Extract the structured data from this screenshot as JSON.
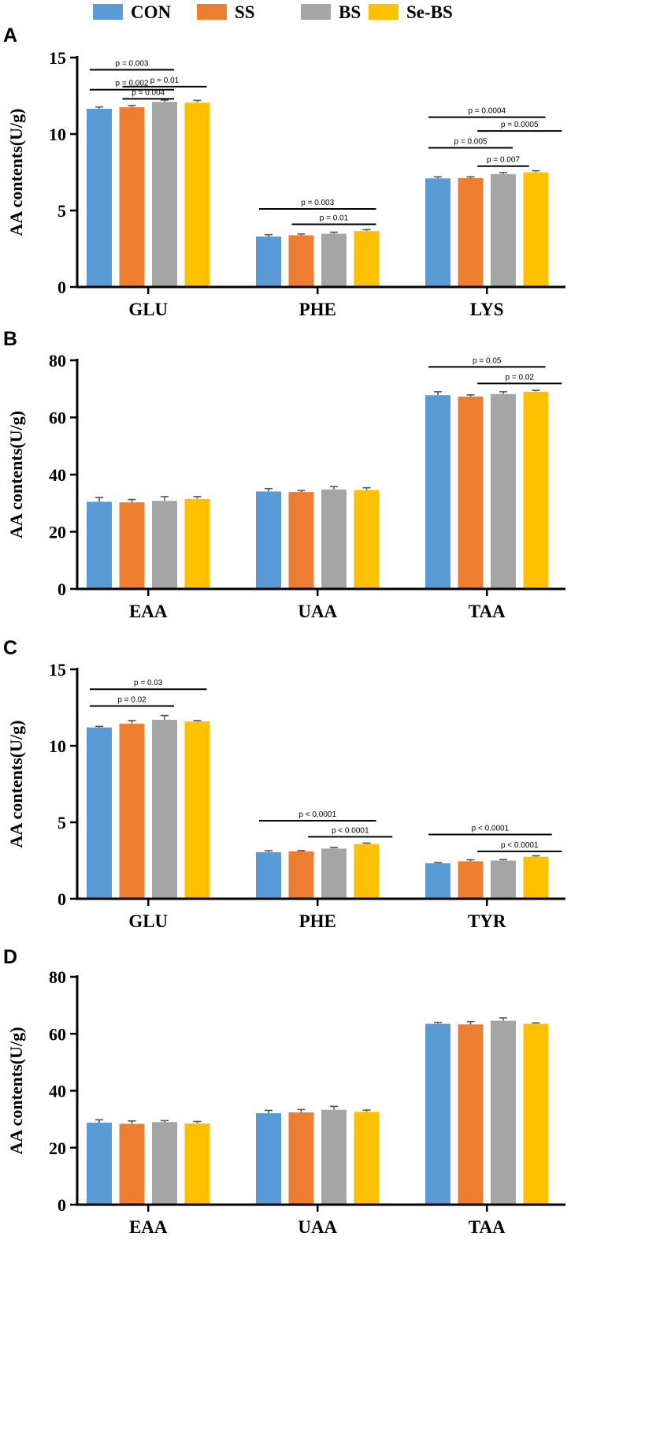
{
  "legend": {
    "items": [
      {
        "label": "CON",
        "color": "#5B9BD5"
      },
      {
        "label": "SS",
        "color": "#ED7D31"
      },
      {
        "label": "BS",
        "color": "#A5A5A5"
      },
      {
        "label": "Se-BS",
        "color": "#FFC000"
      }
    ]
  },
  "chart_data": [
    {
      "panel": "A",
      "type": "bar",
      "ylabel": "AA contents(U/g)",
      "ylim": [
        0,
        15
      ],
      "yticks": [
        0,
        5,
        10,
        15
      ],
      "categories": [
        "GLU",
        "PHE",
        "LYS"
      ],
      "series": [
        {
          "name": "CON",
          "values": [
            11.65,
            3.3,
            7.1
          ],
          "errors": [
            0.12,
            0.12,
            0.1
          ]
        },
        {
          "name": "SS",
          "values": [
            11.75,
            3.38,
            7.12
          ],
          "errors": [
            0.12,
            0.08,
            0.08
          ]
        },
        {
          "name": "BS",
          "values": [
            12.1,
            3.48,
            7.38
          ],
          "errors": [
            0.12,
            0.1,
            0.1
          ]
        },
        {
          "name": "Se-BS",
          "values": [
            12.05,
            3.65,
            7.5
          ],
          "errors": [
            0.15,
            0.1,
            0.1
          ]
        }
      ],
      "annotations": [
        {
          "category": "GLU",
          "from": 0,
          "to": 2,
          "label": "p = 0.003",
          "y": 14.2
        },
        {
          "category": "GLU",
          "from": 1,
          "to": 3,
          "label": "p = 0.01",
          "y": 13.1
        },
        {
          "category": "GLU",
          "from": 0,
          "to": 2,
          "label": "p = 0.002",
          "y": 12.9,
          "shift": -1
        },
        {
          "category": "GLU",
          "from": 1,
          "to": 2,
          "label": "p = 0.004",
          "y": 12.3
        },
        {
          "category": "PHE",
          "from": 0,
          "to": 3,
          "label": "p = 0.003",
          "y": 5.1
        },
        {
          "category": "PHE",
          "from": 1,
          "to": 3,
          "label": "p = 0.01",
          "y": 4.1
        },
        {
          "category": "LYS",
          "from": 0,
          "to": 3,
          "label": "p = 0.0004",
          "y": 11.1
        },
        {
          "category": "LYS",
          "from": 1.5,
          "to": 3.5,
          "label": "p = 0.0005",
          "y": 10.2
        },
        {
          "category": "LYS",
          "from": 0,
          "to": 2,
          "label": "p = 0.005",
          "y": 9.1
        },
        {
          "category": "LYS",
          "from": 1.5,
          "to": 2.5,
          "label": "p = 0.007",
          "y": 7.9
        }
      ]
    },
    {
      "panel": "B",
      "type": "bar",
      "ylabel": "AA contents(U/g)",
      "ylim": [
        0,
        80
      ],
      "yticks": [
        0,
        20,
        40,
        60,
        80
      ],
      "categories": [
        "EAA",
        "UAA",
        "TAA"
      ],
      "series": [
        {
          "name": "CON",
          "values": [
            30.5,
            34.1,
            67.8
          ],
          "errors": [
            1.5,
            1.0,
            1.2
          ]
        },
        {
          "name": "SS",
          "values": [
            30.3,
            33.9,
            67.3
          ],
          "errors": [
            1.0,
            0.5,
            0.6
          ]
        },
        {
          "name": "BS",
          "values": [
            30.8,
            34.8,
            68.2
          ],
          "errors": [
            1.5,
            1.0,
            0.8
          ]
        },
        {
          "name": "Se-BS",
          "values": [
            31.5,
            34.6,
            69.0
          ],
          "errors": [
            0.8,
            0.8,
            0.5
          ]
        }
      ],
      "annotations": [
        {
          "category": "TAA",
          "from": 0,
          "to": 3,
          "label": "p = 0.05",
          "y": 77.7
        },
        {
          "category": "TAA",
          "from": 1.5,
          "to": 3.5,
          "label": "p = 0.02",
          "y": 71.9
        }
      ]
    },
    {
      "panel": "C",
      "type": "bar",
      "ylabel": "AA contents(U/g)",
      "ylim": [
        0,
        15
      ],
      "yticks": [
        0,
        5,
        10,
        15
      ],
      "categories": [
        "GLU",
        "PHE",
        "TYR"
      ],
      "series": [
        {
          "name": "CON",
          "values": [
            11.2,
            3.05,
            2.32
          ],
          "errors": [
            0.07,
            0.1,
            0.05
          ]
        },
        {
          "name": "SS",
          "values": [
            11.45,
            3.1,
            2.45
          ],
          "errors": [
            0.2,
            0.05,
            0.1
          ]
        },
        {
          "name": "BS",
          "values": [
            11.7,
            3.28,
            2.5
          ],
          "errors": [
            0.28,
            0.08,
            0.06
          ]
        },
        {
          "name": "Se-BS",
          "values": [
            11.6,
            3.58,
            2.75
          ],
          "errors": [
            0.05,
            0.06,
            0.06
          ]
        }
      ],
      "annotations": [
        {
          "category": "GLU",
          "from": 0,
          "to": 3,
          "label": "p = 0.03",
          "y": 13.7
        },
        {
          "category": "GLU",
          "from": 0,
          "to": 2,
          "label": "p = 0.02",
          "y": 12.6
        },
        {
          "category": "PHE",
          "from": 0,
          "to": 3,
          "label": "p < 0.0001",
          "y": 5.1
        },
        {
          "category": "PHE",
          "from": 1.5,
          "to": 3.5,
          "label": "p < 0.0001",
          "y": 4.05
        },
        {
          "category": "TYR",
          "from": 0,
          "to": 3.2,
          "label": "p < 0.0001",
          "y": 4.2
        },
        {
          "category": "TYR",
          "from": 1.5,
          "to": 3.5,
          "label": "p < 0.0001",
          "y": 3.1
        }
      ]
    },
    {
      "panel": "D",
      "type": "bar",
      "ylabel": "AA contents(U/g)",
      "ylim": [
        0,
        80
      ],
      "yticks": [
        0,
        20,
        40,
        60,
        80
      ],
      "categories": [
        "EAA",
        "UAA",
        "TAA"
      ],
      "series": [
        {
          "name": "CON",
          "values": [
            28.8,
            32.1,
            63.5
          ],
          "errors": [
            1.0,
            1.0,
            0.5
          ]
        },
        {
          "name": "SS",
          "values": [
            28.4,
            32.4,
            63.3
          ],
          "errors": [
            1.0,
            1.0,
            1.0
          ]
        },
        {
          "name": "BS",
          "values": [
            29.0,
            33.3,
            64.6
          ],
          "errors": [
            0.5,
            1.2,
            1.0
          ]
        },
        {
          "name": "Se-BS",
          "values": [
            28.5,
            32.6,
            63.5
          ],
          "errors": [
            0.7,
            0.6,
            0.3
          ]
        }
      ],
      "annotations": []
    }
  ]
}
